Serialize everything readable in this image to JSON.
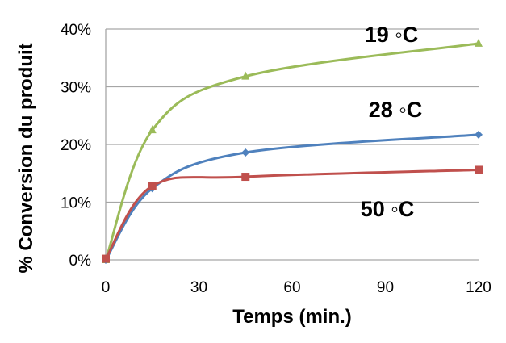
{
  "chart_data": {
    "type": "line",
    "xlabel": "Temps (min.)",
    "ylabel": "% Conversion du produit",
    "xlim": [
      0,
      120
    ],
    "ylim": [
      0,
      40
    ],
    "xticks": [
      "0",
      "30",
      "60",
      "90",
      "120"
    ],
    "yticks": [
      "0%",
      "10%",
      "20%",
      "30%",
      "40%"
    ],
    "grid": "horizontal",
    "x": [
      0,
      15,
      45,
      120
    ],
    "series": [
      {
        "name": "19 ◦C",
        "color": "#9BBB59",
        "marker": "triangle",
        "values": [
          0,
          22.5,
          31.8,
          37.5
        ]
      },
      {
        "name": "28 ◦C",
        "color": "#4F81BD",
        "marker": "diamond",
        "values": [
          0,
          12.4,
          18.6,
          21.7
        ]
      },
      {
        "name": "50 ◦C",
        "color": "#C0504D",
        "marker": "square",
        "values": [
          0.2,
          12.8,
          14.4,
          15.6
        ]
      }
    ]
  }
}
